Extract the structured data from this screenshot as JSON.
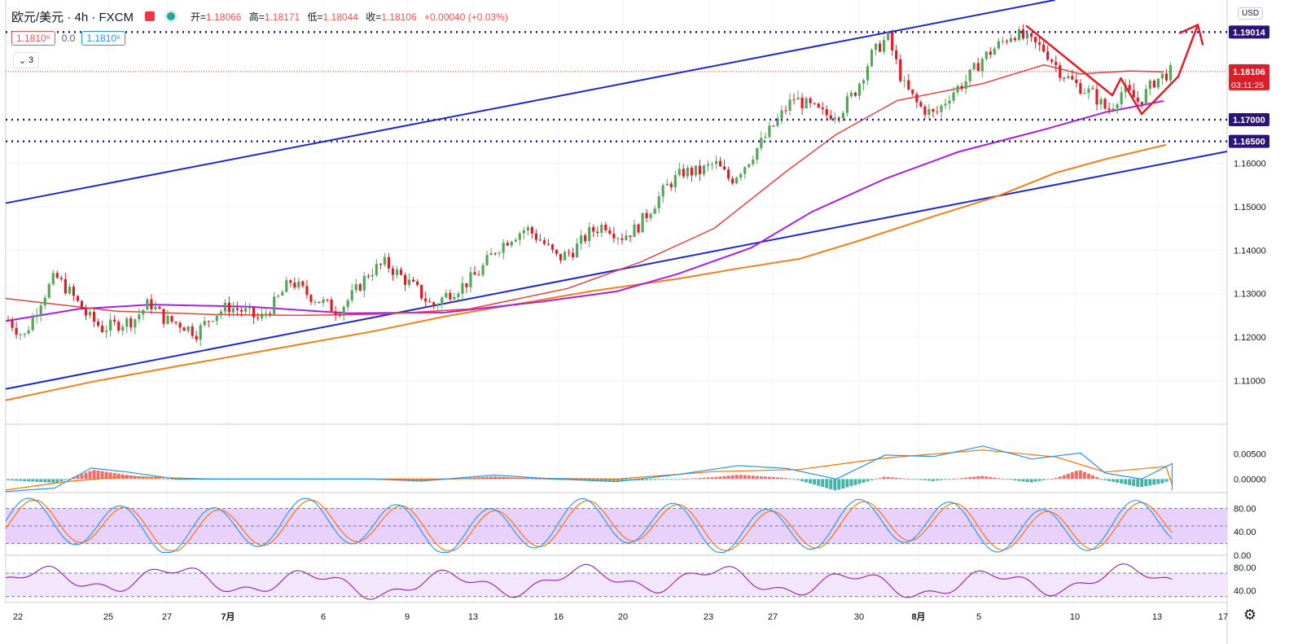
{
  "legend": {
    "symbol": "欧元/美元 · 4h · FXCM",
    "ohlc": [
      {
        "label": "开=",
        "value": "1.18066"
      },
      {
        "label": "高=",
        "value": "1.18171"
      },
      {
        "label": "低=",
        "value": "1.18044"
      },
      {
        "label": "收=",
        "value": "1.18106"
      },
      {
        "label": "",
        "value": "+0.00040 (+0.03%)"
      }
    ],
    "sell_price": "1.1810⁶",
    "spread": "0.0",
    "buy_price": "1.1810⁶",
    "indicators_count": "3",
    "currency": "USD"
  },
  "colors": {
    "up": "#26a69a",
    "down": "#ef5350",
    "up_candle": "#53a65a",
    "down_candle": "#d91f2a",
    "trend_line": "#1c28d4",
    "level_line": "#2a1478",
    "ma_red": "#f03e3e",
    "ma_purple": "#aa1ee8",
    "ma_orange": "#f57f17",
    "arrow": "#e31e24",
    "macd_line": "#2196f3",
    "signal_line": "#ff6d00",
    "stoch_band": "#e8d1fb",
    "rsi_band": "#f3e5fc"
  },
  "chart_data": {
    "type": "candlestick",
    "main": {
      "y_range": [
        1.1,
        1.1975
      ],
      "y_ticks": [
        "1.11000",
        "1.12000",
        "1.13000",
        "1.14000",
        "1.15000",
        "1.16000"
      ],
      "levels": [
        {
          "value": 1.19014,
          "label": "1.19014"
        },
        {
          "value": 1.17,
          "label": "1.17000"
        },
        {
          "value": 1.165,
          "label": "1.16500"
        }
      ],
      "current_price": {
        "value": 1.18106,
        "label": "1.18106",
        "countdown": "03:11:25"
      },
      "x_ticks": [
        "22",
        "25",
        "27",
        "7月",
        "6",
        "9",
        "13",
        "16",
        "20",
        "23",
        "27",
        "30",
        "8月",
        "5",
        "10",
        "13",
        "17"
      ],
      "trend_channel": {
        "upper": [
          [
            0,
            1.1508
          ],
          [
            0.859,
            1.1975
          ]
        ],
        "lower": [
          [
            0,
            1.1081
          ],
          [
            1,
            1.1627
          ]
        ]
      },
      "ma_fast": [
        [
          0,
          1.1289
        ],
        [
          0.09,
          1.126
        ],
        [
          0.17,
          1.1252
        ],
        [
          0.24,
          1.125
        ],
        [
          0.31,
          1.1253
        ],
        [
          0.38,
          1.1265
        ],
        [
          0.46,
          1.1312
        ],
        [
          0.52,
          1.1373
        ],
        [
          0.58,
          1.145
        ],
        [
          0.64,
          1.1583
        ],
        [
          0.68,
          1.1666
        ],
        [
          0.73,
          1.1744
        ],
        [
          0.8,
          1.1783
        ],
        [
          0.85,
          1.1826
        ],
        [
          0.88,
          1.1805
        ],
        [
          0.92,
          1.1812
        ],
        [
          0.948,
          1.181
        ]
      ],
      "ma_mid": [
        [
          0,
          1.1237
        ],
        [
          0.06,
          1.1265
        ],
        [
          0.12,
          1.1275
        ],
        [
          0.2,
          1.127
        ],
        [
          0.28,
          1.1255
        ],
        [
          0.36,
          1.1257
        ],
        [
          0.44,
          1.1282
        ],
        [
          0.5,
          1.1305
        ],
        [
          0.55,
          1.1345
        ],
        [
          0.61,
          1.1405
        ],
        [
          0.66,
          1.1488
        ],
        [
          0.72,
          1.1564
        ],
        [
          0.78,
          1.1626
        ],
        [
          0.85,
          1.1677
        ],
        [
          0.9,
          1.1717
        ],
        [
          0.948,
          1.1743
        ]
      ],
      "ma_slow": [
        [
          0,
          1.1055
        ],
        [
          0.07,
          1.1097
        ],
        [
          0.14,
          1.1133
        ],
        [
          0.22,
          1.1173
        ],
        [
          0.3,
          1.1213
        ],
        [
          0.36,
          1.1248
        ],
        [
          0.41,
          1.1272
        ],
        [
          0.48,
          1.1306
        ],
        [
          0.55,
          1.1334
        ],
        [
          0.6,
          1.1358
        ],
        [
          0.65,
          1.138
        ],
        [
          0.7,
          1.1423
        ],
        [
          0.76,
          1.1478
        ],
        [
          0.81,
          1.1522
        ],
        [
          0.86,
          1.1578
        ],
        [
          0.9,
          1.1609
        ],
        [
          0.95,
          1.1642
        ]
      ],
      "arrows": [
        {
          "kind": "line",
          "from": [
            0.836,
            1.1915
          ],
          "to": [
            0.906,
            1.1756
          ]
        },
        {
          "kind": "line",
          "from": [
            0.906,
            1.1756
          ],
          "to": [
            0.913,
            1.1795
          ]
        },
        {
          "kind": "line",
          "from": [
            0.913,
            1.1795
          ],
          "to": [
            0.93,
            1.1713
          ]
        },
        {
          "kind": "line",
          "from": [
            0.93,
            1.1713
          ],
          "to": [
            0.96,
            1.1799
          ]
        },
        {
          "kind": "line",
          "from": [
            0.96,
            1.1799
          ],
          "to": [
            0.976,
            1.1918
          ]
        },
        {
          "kind": "arrowhead",
          "at": [
            0.976,
            1.1918
          ]
        }
      ],
      "candles_seed": [
        1.124,
        1.12,
        1.128,
        1.134,
        1.13,
        1.125,
        1.122,
        1.123,
        1.124,
        1.128,
        1.124,
        1.123,
        1.121,
        1.125,
        1.127,
        1.126,
        1.124,
        1.128,
        1.133,
        1.13,
        1.128,
        1.126,
        1.13,
        1.135,
        1.137,
        1.134,
        1.131,
        1.127,
        1.13,
        1.132,
        1.135,
        1.14,
        1.143,
        1.145,
        1.142,
        1.138,
        1.14,
        1.144,
        1.146,
        1.143,
        1.145,
        1.15,
        1.155,
        1.158,
        1.158,
        1.16,
        1.156,
        1.16,
        1.165,
        1.17,
        1.175,
        1.173,
        1.171,
        1.172,
        1.177,
        1.185,
        1.189,
        1.178,
        1.173,
        1.171,
        1.176,
        1.179,
        1.184,
        1.187,
        1.19,
        1.188,
        1.186,
        1.181,
        1.178,
        1.176,
        1.172,
        1.177,
        1.174,
        1.179,
        1.181
      ]
    },
    "macd": {
      "y_range": [
        -0.0027,
        0.0108
      ],
      "y_ticks": [
        "0.00500",
        "0.00000"
      ],
      "macd_line": [
        [
          0,
          -0.0025
        ],
        [
          0.04,
          -0.0018
        ],
        [
          0.07,
          0.0022
        ],
        [
          0.1,
          0.0014
        ],
        [
          0.14,
          0.0
        ],
        [
          0.19,
          0.0
        ],
        [
          0.25,
          0.0
        ],
        [
          0.3,
          0.0
        ],
        [
          0.34,
          -0.0004
        ],
        [
          0.4,
          0.0008
        ],
        [
          0.45,
          0.0
        ],
        [
          0.5,
          -0.0005
        ],
        [
          0.55,
          0.0009
        ],
        [
          0.6,
          0.0027
        ],
        [
          0.64,
          0.0021
        ],
        [
          0.68,
          0.0
        ],
        [
          0.72,
          0.0048
        ],
        [
          0.76,
          0.0045
        ],
        [
          0.8,
          0.0066
        ],
        [
          0.84,
          0.004
        ],
        [
          0.88,
          0.0052
        ],
        [
          0.9,
          0.0012
        ],
        [
          0.93,
          0.0
        ],
        [
          0.97,
          0.0031
        ],
        [
          1.0,
          -0.0022
        ],
        [
          1.05,
          0.0
        ]
      ],
      "signal_line": [
        [
          0,
          -0.0022
        ],
        [
          0.05,
          -0.0005
        ],
        [
          0.1,
          0.0005
        ],
        [
          0.17,
          0.0
        ],
        [
          0.27,
          0.0
        ],
        [
          0.35,
          0.0
        ],
        [
          0.42,
          0.0002
        ],
        [
          0.5,
          0.0
        ],
        [
          0.58,
          0.0015
        ],
        [
          0.65,
          0.0019
        ],
        [
          0.72,
          0.0042
        ],
        [
          0.8,
          0.0058
        ],
        [
          0.86,
          0.0044
        ],
        [
          0.9,
          0.0014
        ],
        [
          0.95,
          0.0025
        ],
        [
          1.0,
          -0.0012
        ],
        [
          1.05,
          0.0
        ]
      ]
    },
    "stochastic": {
      "y_range": [
        0,
        100
      ],
      "y_ticks": [
        "80.00",
        "40.00",
        "0.00"
      ],
      "band": [
        20,
        80
      ]
    },
    "rsi": {
      "y_range": [
        20,
        95
      ],
      "y_ticks": [
        "80.00",
        "40.00"
      ],
      "band": [
        30,
        70
      ]
    }
  }
}
